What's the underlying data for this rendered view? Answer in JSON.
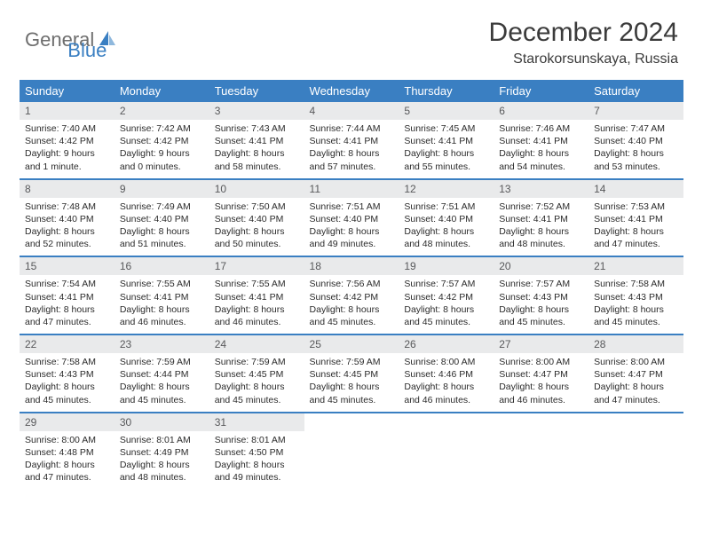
{
  "brand": {
    "part1": "General",
    "part2": "Blue"
  },
  "title": "December 2024",
  "location": "Starokorsunskaya, Russia",
  "colors": {
    "header_bg": "#3a7fc2",
    "header_text": "#ffffff",
    "daynum_bg": "#e9eaeb",
    "daynum_text": "#58595b",
    "body_text": "#2b2b2b",
    "row_border": "#3a7fc2",
    "brand_gray": "#6e6e6e",
    "brand_blue": "#3a7fc2"
  },
  "font": {
    "title_size": 30,
    "location_size": 16,
    "dayhead_size": 13,
    "daynum_size": 12,
    "body_size": 10.5
  },
  "weekdays": [
    "Sunday",
    "Monday",
    "Tuesday",
    "Wednesday",
    "Thursday",
    "Friday",
    "Saturday"
  ],
  "days": [
    {
      "n": "1",
      "sr": "7:40 AM",
      "ss": "4:42 PM",
      "dl": "9 hours and 1 minute."
    },
    {
      "n": "2",
      "sr": "7:42 AM",
      "ss": "4:42 PM",
      "dl": "9 hours and 0 minutes."
    },
    {
      "n": "3",
      "sr": "7:43 AM",
      "ss": "4:41 PM",
      "dl": "8 hours and 58 minutes."
    },
    {
      "n": "4",
      "sr": "7:44 AM",
      "ss": "4:41 PM",
      "dl": "8 hours and 57 minutes."
    },
    {
      "n": "5",
      "sr": "7:45 AM",
      "ss": "4:41 PM",
      "dl": "8 hours and 55 minutes."
    },
    {
      "n": "6",
      "sr": "7:46 AM",
      "ss": "4:41 PM",
      "dl": "8 hours and 54 minutes."
    },
    {
      "n": "7",
      "sr": "7:47 AM",
      "ss": "4:40 PM",
      "dl": "8 hours and 53 minutes."
    },
    {
      "n": "8",
      "sr": "7:48 AM",
      "ss": "4:40 PM",
      "dl": "8 hours and 52 minutes."
    },
    {
      "n": "9",
      "sr": "7:49 AM",
      "ss": "4:40 PM",
      "dl": "8 hours and 51 minutes."
    },
    {
      "n": "10",
      "sr": "7:50 AM",
      "ss": "4:40 PM",
      "dl": "8 hours and 50 minutes."
    },
    {
      "n": "11",
      "sr": "7:51 AM",
      "ss": "4:40 PM",
      "dl": "8 hours and 49 minutes."
    },
    {
      "n": "12",
      "sr": "7:51 AM",
      "ss": "4:40 PM",
      "dl": "8 hours and 48 minutes."
    },
    {
      "n": "13",
      "sr": "7:52 AM",
      "ss": "4:41 PM",
      "dl": "8 hours and 48 minutes."
    },
    {
      "n": "14",
      "sr": "7:53 AM",
      "ss": "4:41 PM",
      "dl": "8 hours and 47 minutes."
    },
    {
      "n": "15",
      "sr": "7:54 AM",
      "ss": "4:41 PM",
      "dl": "8 hours and 47 minutes."
    },
    {
      "n": "16",
      "sr": "7:55 AM",
      "ss": "4:41 PM",
      "dl": "8 hours and 46 minutes."
    },
    {
      "n": "17",
      "sr": "7:55 AM",
      "ss": "4:41 PM",
      "dl": "8 hours and 46 minutes."
    },
    {
      "n": "18",
      "sr": "7:56 AM",
      "ss": "4:42 PM",
      "dl": "8 hours and 45 minutes."
    },
    {
      "n": "19",
      "sr": "7:57 AM",
      "ss": "4:42 PM",
      "dl": "8 hours and 45 minutes."
    },
    {
      "n": "20",
      "sr": "7:57 AM",
      "ss": "4:43 PM",
      "dl": "8 hours and 45 minutes."
    },
    {
      "n": "21",
      "sr": "7:58 AM",
      "ss": "4:43 PM",
      "dl": "8 hours and 45 minutes."
    },
    {
      "n": "22",
      "sr": "7:58 AM",
      "ss": "4:43 PM",
      "dl": "8 hours and 45 minutes."
    },
    {
      "n": "23",
      "sr": "7:59 AM",
      "ss": "4:44 PM",
      "dl": "8 hours and 45 minutes."
    },
    {
      "n": "24",
      "sr": "7:59 AM",
      "ss": "4:45 PM",
      "dl": "8 hours and 45 minutes."
    },
    {
      "n": "25",
      "sr": "7:59 AM",
      "ss": "4:45 PM",
      "dl": "8 hours and 45 minutes."
    },
    {
      "n": "26",
      "sr": "8:00 AM",
      "ss": "4:46 PM",
      "dl": "8 hours and 46 minutes."
    },
    {
      "n": "27",
      "sr": "8:00 AM",
      "ss": "4:47 PM",
      "dl": "8 hours and 46 minutes."
    },
    {
      "n": "28",
      "sr": "8:00 AM",
      "ss": "4:47 PM",
      "dl": "8 hours and 47 minutes."
    },
    {
      "n": "29",
      "sr": "8:00 AM",
      "ss": "4:48 PM",
      "dl": "8 hours and 47 minutes."
    },
    {
      "n": "30",
      "sr": "8:01 AM",
      "ss": "4:49 PM",
      "dl": "8 hours and 48 minutes."
    },
    {
      "n": "31",
      "sr": "8:01 AM",
      "ss": "4:50 PM",
      "dl": "8 hours and 49 minutes."
    }
  ],
  "labels": {
    "sunrise": "Sunrise:",
    "sunset": "Sunset:",
    "daylight": "Daylight:"
  },
  "layout": {
    "first_weekday_index": 0,
    "weeks": 5,
    "cols": 7
  }
}
